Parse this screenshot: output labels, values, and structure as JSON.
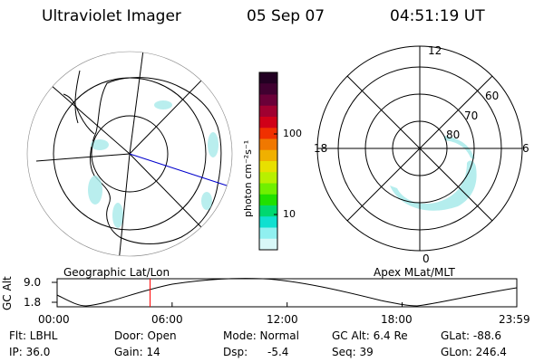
{
  "header": {
    "instrument": "Ultraviolet Imager",
    "date": "05 Sep 07",
    "time": "04:51:19 UT"
  },
  "colorbar": {
    "unit_label": "photon cm⁻²s⁻¹",
    "ticks": [
      "100",
      "10"
    ],
    "colors": [
      "#220022",
      "#400030",
      "#6a0038",
      "#a00030",
      "#d00018",
      "#f03000",
      "#f07800",
      "#f0b000",
      "#e8e000",
      "#b8f000",
      "#70f000",
      "#20e000",
      "#00d870",
      "#10e0d0",
      "#90f0f0",
      "#d8f8f8"
    ]
  },
  "left_panel": {
    "label": "Geographic Lat/Lon"
  },
  "right_panel": {
    "label": "Apex MLat/MLT",
    "mlt_labels": {
      "top": "12",
      "left": "18",
      "right": "6",
      "bottom": "0"
    },
    "lat_labels": [
      "60",
      "70",
      "80"
    ]
  },
  "altitude_plot": {
    "ylabel": "GC Alt",
    "yticks": [
      "9.0",
      "1.8"
    ],
    "xticks": [
      "00:00",
      "06:00",
      "12:00",
      "18:00",
      "23:59"
    ],
    "current_time_marker": "04:51",
    "marker_color": "#ff0000"
  },
  "info": {
    "filter": "Flt: LBHL",
    "ip": "IP: 36.0",
    "door": "Door: Open",
    "gain": "Gain: 14",
    "mode": "Mode: Normal",
    "dsp_label": "Dsp:",
    "dsp_value": "-5.4",
    "gc_alt": "GC Alt: 6.4 Re",
    "seq": "Seq: 39",
    "glat": "GLat: -88.6",
    "glon": "GLon: 246.4"
  }
}
